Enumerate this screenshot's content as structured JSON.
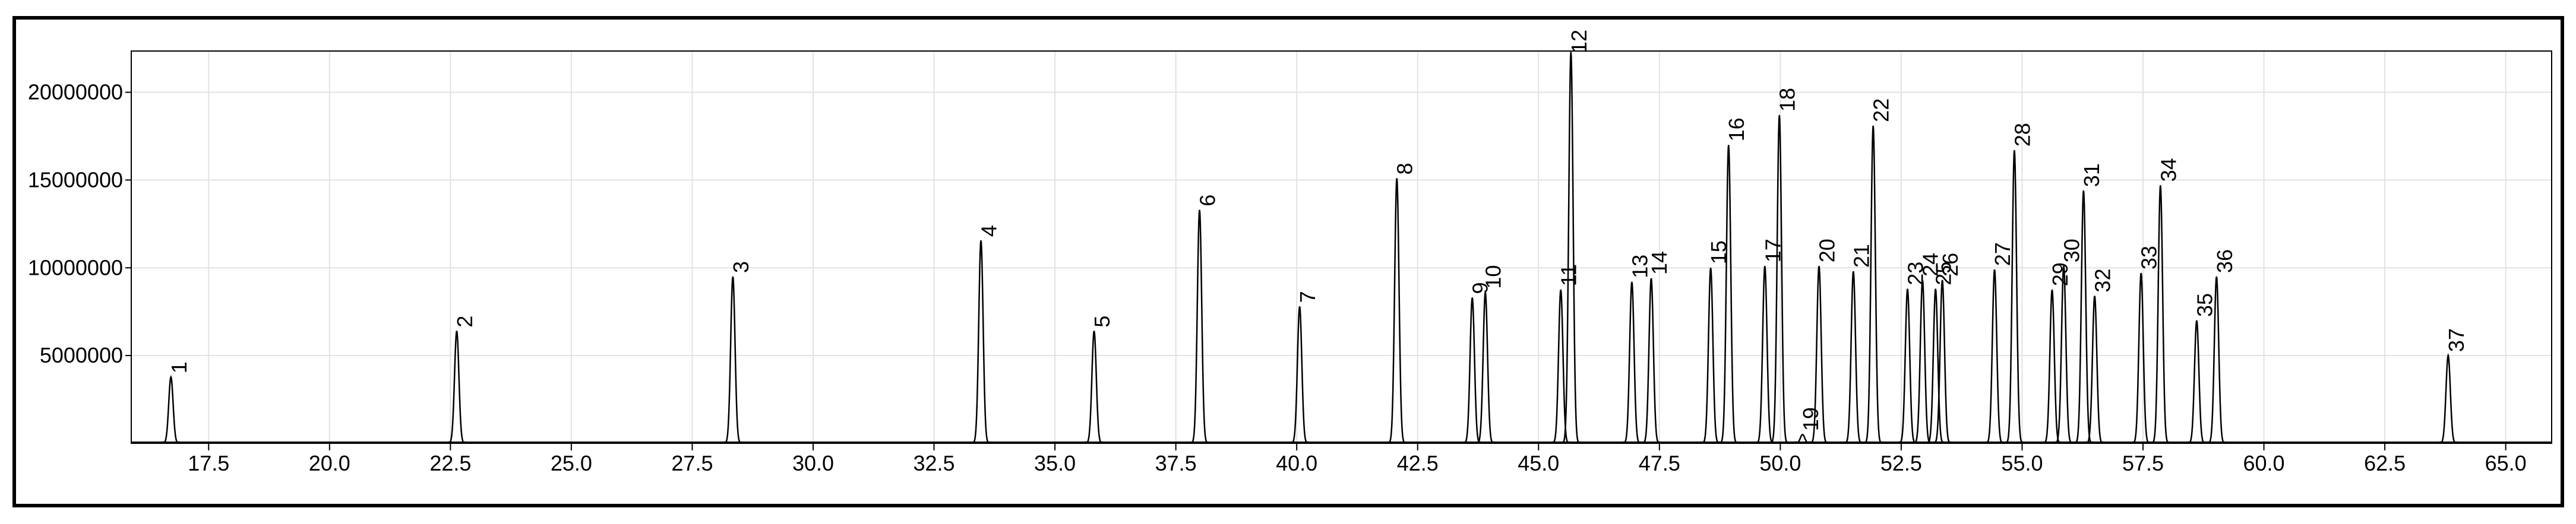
{
  "chart_data": {
    "type": "chromatogram",
    "x": [
      16.72,
      22.63,
      28.34,
      33.47,
      35.81,
      37.99,
      40.06,
      42.07,
      43.63,
      43.9,
      45.46,
      45.67,
      46.93,
      47.33,
      48.56,
      48.93,
      49.68,
      49.98,
      50.46,
      50.8,
      51.51,
      51.92,
      52.63,
      52.94,
      53.21,
      53.35,
      54.43,
      54.84,
      55.62,
      55.86,
      56.27,
      56.5,
      57.46,
      57.86,
      58.61,
      59.02,
      63.81
    ],
    "values": [
      3780000,
      6400000,
      9500000,
      11560000,
      6400000,
      13300000,
      7800000,
      15100000,
      8300000,
      8600000,
      8750000,
      22300000,
      9200000,
      9400000,
      10000000,
      17000000,
      10100000,
      18700000,
      500000,
      10100000,
      9800000,
      18100000,
      8800000,
      9300000,
      8800000,
      9300000,
      9900000,
      16700000,
      8750000,
      10100000,
      14400000,
      8400000,
      9700000,
      14700000,
      7000000,
      9500000,
      5000000
    ],
    "labels": [
      "1",
      "2",
      "3",
      "4",
      "5",
      "6",
      "7",
      "8",
      "9",
      "10",
      "11",
      "12",
      "13",
      "14",
      "15",
      "16",
      "17",
      "18",
      "19",
      "20",
      "21",
      "22",
      "23",
      "24",
      "25",
      "26",
      "27",
      "28",
      "29",
      "30",
      "31",
      "32",
      "33",
      "34",
      "35",
      "36",
      "37"
    ],
    "color": "#000000",
    "xlim": [
      15.9,
      65.95
    ],
    "xticks": [
      17.5,
      {
        "value": 20,
        "label": "20.0"
      },
      22.5,
      {
        "value": 25,
        "label": "25.0"
      },
      27.5,
      {
        "value": 30,
        "label": "30.0"
      },
      32.5,
      {
        "value": 35,
        "label": "35.0"
      },
      37.5,
      {
        "value": 40,
        "label": "40.0"
      },
      42.5,
      {
        "value": 45,
        "label": "45.0"
      },
      47.5,
      {
        "value": 50,
        "label": "50.0"
      },
      52.5,
      {
        "value": 55,
        "label": "55.0"
      },
      57.5,
      {
        "value": 60,
        "label": "60.0"
      },
      62.5,
      {
        "value": 65,
        "label": "65.0"
      }
    ],
    "ylim": [
      0,
      22350000
    ],
    "yticks": [
      5000000,
      10000000,
      15000000,
      20000000
    ],
    "grid": true
  }
}
